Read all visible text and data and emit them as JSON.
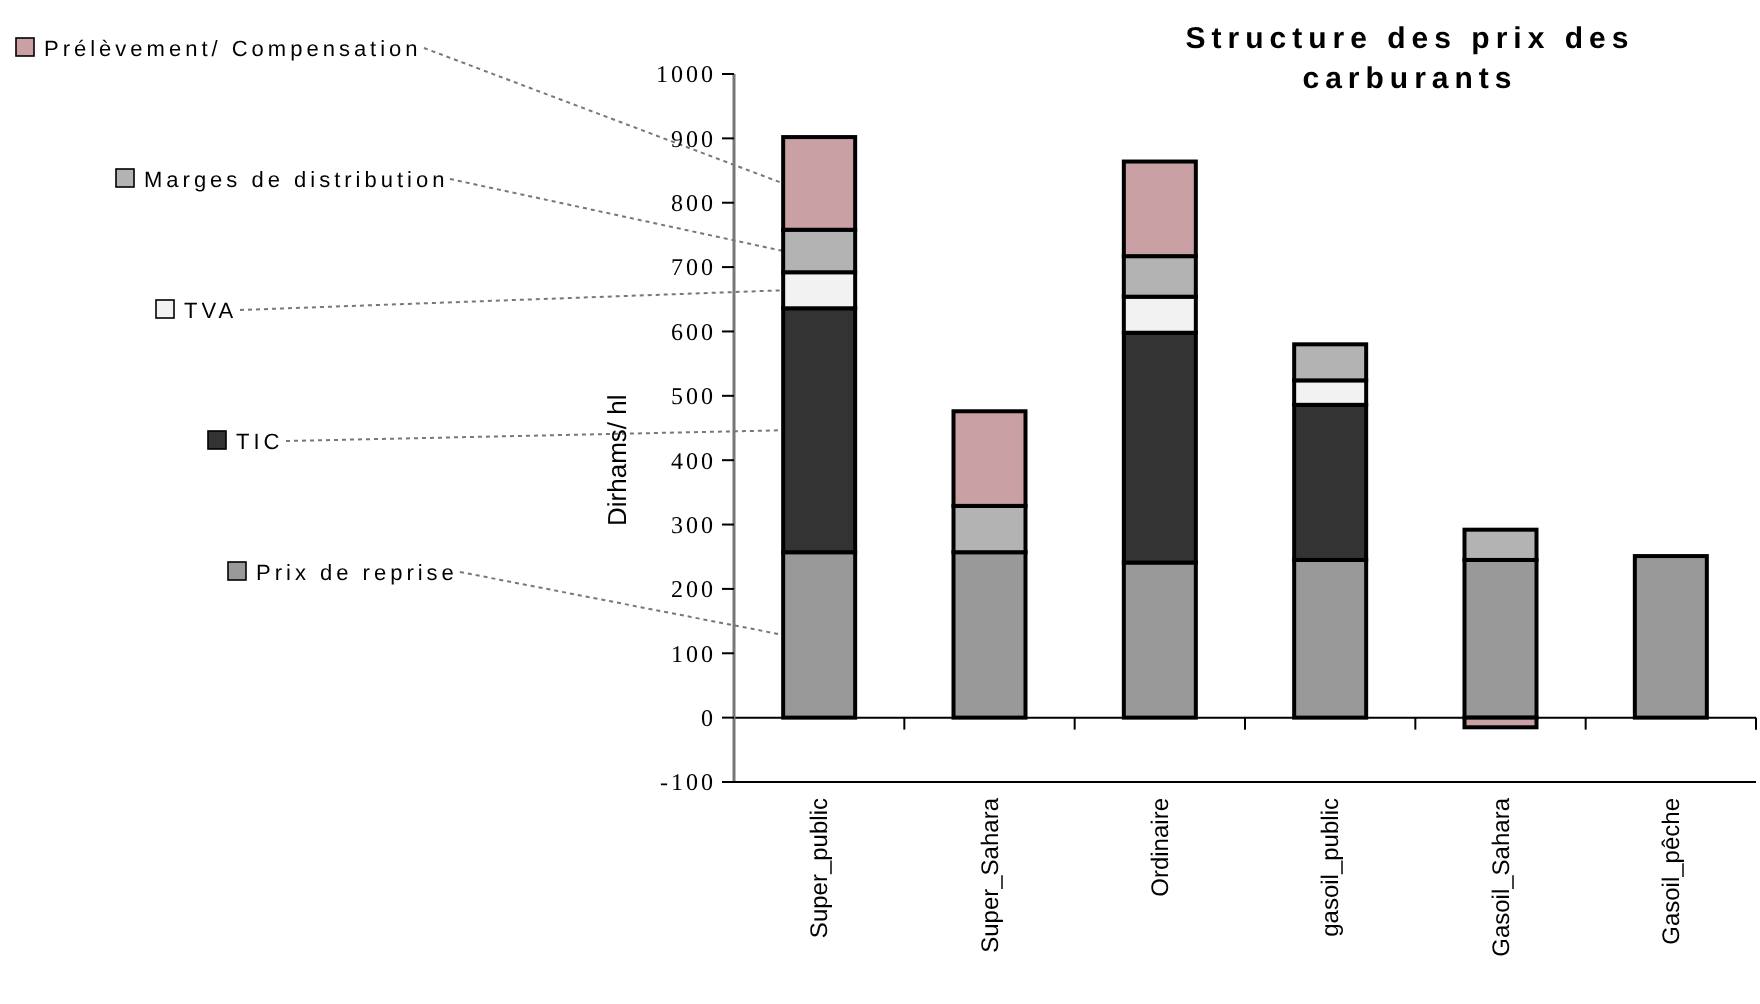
{
  "chart_data": {
    "type": "bar",
    "title": "Structure des prix des carburants",
    "ylabel": "Dirhams/ hl",
    "categories": [
      "Super_public",
      "Super_Sahara",
      "Ordinaire",
      "gasoil_public",
      "Gasoil_Sahara",
      "Gasoil_pêche"
    ],
    "stacked": true,
    "legend": "left",
    "grid": false,
    "ref_lines": [
      {
        "axis": "y",
        "value": 0,
        "color": "#000000"
      }
    ],
    "ylim": [
      -100,
      1000
    ],
    "yticks": [
      -100,
      0,
      100,
      200,
      300,
      400,
      500,
      600,
      700,
      800,
      900,
      1000
    ],
    "series": [
      {
        "name": "Prix de reprise",
        "color": "#999999",
        "values": [
          257,
          257,
          241,
          245,
          245,
          251
        ]
      },
      {
        "name": "TIC",
        "color": "#333333",
        "values": [
          379,
          0,
          357,
          241,
          0,
          0
        ]
      },
      {
        "name": "TVA",
        "color": "#f2f2f2",
        "values": [
          56,
          0,
          56,
          38,
          0,
          0
        ]
      },
      {
        "name": "Marges de distribution",
        "color": "#b3b3b3",
        "values": [
          66,
          72,
          63,
          56,
          47,
          0
        ]
      },
      {
        "name": "Prélèvement/ Compensation",
        "color": "#c9a0a3",
        "values": [
          144,
          147,
          147,
          0,
          -15,
          0
        ]
      }
    ]
  }
}
